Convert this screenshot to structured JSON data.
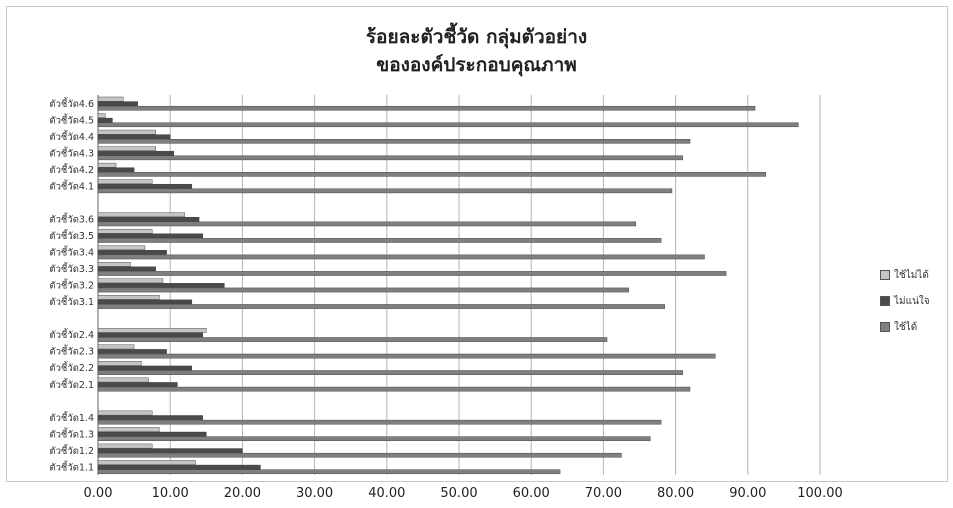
{
  "chart_data": {
    "type": "bar",
    "orientation": "horizontal",
    "title_line1": "ร้อยละตัวชี้วัด กลุ่มตัวอย่าง",
    "title_line2": "ขององค์ประกอบคุณภาพ",
    "xlim": [
      0,
      100
    ],
    "x_ticks": [
      "0.00",
      "10.00",
      "20.00",
      "30.00",
      "40.00",
      "50.00",
      "60.00",
      "70.00",
      "80.00",
      "90.00",
      "100.00"
    ],
    "grid": "vertical",
    "legend_position": "right",
    "legend_order": [
      2,
      1,
      0
    ],
    "groups": [
      {
        "categories": [
          "ตัวชี้วัด4.6",
          "ตัวชี้วัด4.5",
          "ตัวชี้วัด4.4",
          "ตัวชี้วัด4.3",
          "ตัวชี้วัด4.2",
          "ตัวชี้วัด4.1"
        ],
        "rows": [
          [
            91,
            5.5,
            3.5
          ],
          [
            97,
            2,
            1
          ],
          [
            82,
            10,
            8
          ],
          [
            81,
            10.5,
            8
          ],
          [
            92.5,
            5,
            2.5
          ],
          [
            79.5,
            13,
            7.5
          ]
        ]
      },
      {
        "categories": [
          "ตัวชี้วัด3.6",
          "ตัวชี้วัด3.5",
          "ตัวชี้วัด3.4",
          "ตัวชี้วัด3.3",
          "ตัวชี้วัด3.2",
          "ตัวชี้วัด3.1"
        ],
        "rows": [
          [
            74.5,
            14,
            12
          ],
          [
            78,
            14.5,
            7.5
          ],
          [
            84,
            9.5,
            6.5
          ],
          [
            87,
            8,
            4.5
          ],
          [
            73.5,
            17.5,
            9
          ],
          [
            78.5,
            13,
            8.5
          ]
        ]
      },
      {
        "categories": [
          "ตัวชี้วัด2.4",
          "ตัวชี้วัด2.3",
          "ตัวชี้วัด2.2",
          "ตัวชี้วัด2.1"
        ],
        "rows": [
          [
            70.5,
            14.5,
            15
          ],
          [
            85.5,
            9.5,
            5
          ],
          [
            81,
            13,
            6
          ],
          [
            82,
            11,
            7
          ]
        ]
      },
      {
        "categories": [
          "ตัวชี้วัด1.4",
          "ตัวชี้วัด1.3",
          "ตัวชี้วัด1.2",
          "ตัวชี้วัด1.1"
        ],
        "rows": [
          [
            78,
            14.5,
            7.5
          ],
          [
            76.5,
            15,
            8.5
          ],
          [
            72.5,
            20,
            7.5
          ],
          [
            64,
            22.5,
            13.5
          ]
        ]
      }
    ],
    "series": [
      {
        "name": "ใช้ได้",
        "color": "#7f7f7f"
      },
      {
        "name": "ไม่แน่ใจ",
        "color": "#4a4a4a"
      },
      {
        "name": "ใช้ไม่ได้",
        "color": "#c4c4c4"
      }
    ]
  }
}
